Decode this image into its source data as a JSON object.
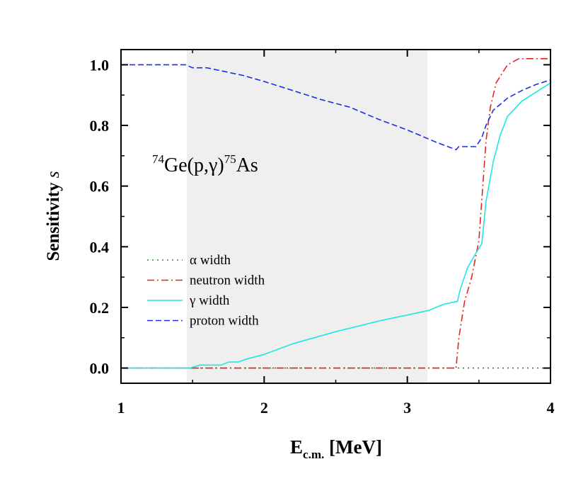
{
  "chart_data": {
    "type": "line",
    "title": "",
    "annotation": {
      "mass_target": "74",
      "target": "Ge",
      "channel": "(p,γ)",
      "mass_product": "75",
      "product": "As"
    },
    "xlabel": {
      "main": "E",
      "sub": "c.m.",
      "unit": " [MeV]"
    },
    "ylabel": {
      "main": "Sensitivity ",
      "symbol": "s"
    },
    "xlim": [
      1,
      4
    ],
    "ylim": [
      -0.05,
      1.05
    ],
    "xticks": [
      1,
      2,
      3,
      4
    ],
    "xtick_labels": [
      "1",
      "2",
      "3",
      "4"
    ],
    "yticks": [
      0.0,
      0.2,
      0.4,
      0.6,
      0.8,
      1.0
    ],
    "ytick_labels": [
      "0.0",
      "0.2",
      "0.4",
      "0.6",
      "0.8",
      "1.0"
    ],
    "grid": false,
    "legend_position": "center-left",
    "shaded_region": {
      "x": [
        1.46,
        3.14
      ],
      "color": "#efefef"
    },
    "series": [
      {
        "name": "α width",
        "color": "#2e8b2e",
        "dash": "dotted",
        "x": [
          1.0,
          4.0
        ],
        "y": [
          0.0,
          0.0
        ]
      },
      {
        "name": "neutron width",
        "color": "#e8231f",
        "dash": "dashdot",
        "x": [
          1.0,
          3.34,
          3.36,
          3.4,
          3.45,
          3.5,
          3.55,
          3.58,
          3.62,
          3.7,
          3.78,
          4.0
        ],
        "y": [
          0.0,
          0.0,
          0.1,
          0.22,
          0.3,
          0.42,
          0.75,
          0.86,
          0.94,
          1.0,
          1.02,
          1.02
        ]
      },
      {
        "name": "γ width",
        "color": "#1fe6e6",
        "dash": "solid",
        "x": [
          1.0,
          1.48,
          1.55,
          1.7,
          1.75,
          1.82,
          1.88,
          2.0,
          2.2,
          2.5,
          2.8,
          3.0,
          3.15,
          3.25,
          3.35,
          3.37,
          3.42,
          3.48,
          3.52,
          3.55,
          3.6,
          3.65,
          3.7,
          3.8,
          3.9,
          4.0
        ],
        "y": [
          0.0,
          0.0,
          0.01,
          0.01,
          0.02,
          0.02,
          0.03,
          0.045,
          0.08,
          0.12,
          0.155,
          0.175,
          0.19,
          0.21,
          0.22,
          0.26,
          0.33,
          0.38,
          0.41,
          0.55,
          0.68,
          0.77,
          0.83,
          0.88,
          0.91,
          0.94
        ]
      },
      {
        "name": "proton width",
        "color": "#1a2ee6",
        "dash": "dashed",
        "x": [
          1.0,
          1.45,
          1.5,
          1.6,
          1.65,
          1.7,
          1.75,
          1.8,
          1.85,
          2.0,
          2.2,
          2.4,
          2.6,
          2.8,
          3.0,
          3.2,
          3.34,
          3.36,
          3.42,
          3.48,
          3.52,
          3.55,
          3.6,
          3.7,
          3.8,
          3.9,
          4.0
        ],
        "y": [
          1.0,
          1.0,
          0.99,
          0.99,
          0.985,
          0.98,
          0.975,
          0.97,
          0.965,
          0.945,
          0.915,
          0.885,
          0.86,
          0.82,
          0.785,
          0.745,
          0.72,
          0.73,
          0.73,
          0.73,
          0.76,
          0.8,
          0.85,
          0.89,
          0.915,
          0.935,
          0.95
        ]
      }
    ]
  }
}
